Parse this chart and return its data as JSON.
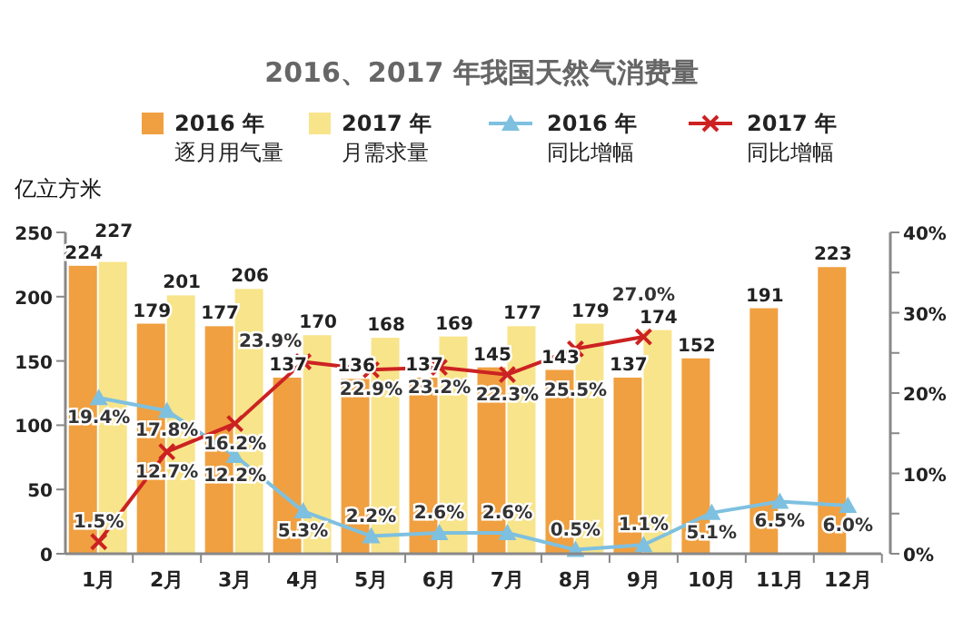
{
  "chart_data": {
    "type": "bar",
    "title": "2016、2017 年我国天然气消费量",
    "ylabel": "亿立方米",
    "categories": [
      "1月",
      "2月",
      "3月",
      "4月",
      "5月",
      "6月",
      "7月",
      "8月",
      "9月",
      "10月",
      "11月",
      "12月"
    ],
    "series": [
      {
        "name": "2016 年逐月用气量",
        "color": "#f0a040",
        "values": [
          224,
          179,
          177,
          137,
          136,
          137,
          145,
          143,
          137,
          152,
          191,
          223
        ]
      },
      {
        "name": "2017 年月需求量",
        "color": "#f8e48a",
        "values": [
          227,
          201,
          206,
          170,
          168,
          169,
          177,
          179,
          174,
          null,
          null,
          null
        ]
      },
      {
        "name": "2016 年同比增幅",
        "type": "line",
        "axis": "y2",
        "marker": "triangle",
        "color": "#7ec0e0",
        "values": [
          19.4,
          17.8,
          12.2,
          5.3,
          2.2,
          2.6,
          2.6,
          0.5,
          1.1,
          5.1,
          6.5,
          6.0
        ],
        "value_labels": [
          "19.4%",
          "17.8%",
          "12.2%",
          "5.3%",
          "2.2%",
          "2.6%",
          "2.6%",
          "0.5%",
          "1.1%",
          "5.1%",
          "6.5%",
          "6.0%"
        ]
      },
      {
        "name": "2017 年同比增幅",
        "type": "line",
        "axis": "y2",
        "marker": "cross",
        "color": "#cc2222",
        "values": [
          1.5,
          12.7,
          16.2,
          23.9,
          22.9,
          23.2,
          22.3,
          25.5,
          27.0,
          null,
          null,
          null
        ],
        "value_labels": [
          "1.5%",
          "12.7%",
          "16.2%",
          "23.9%",
          "22.9%",
          "23.2%",
          "22.3%",
          "25.5%",
          "27.0%",
          null,
          null,
          null
        ]
      }
    ],
    "ylim": [
      0,
      250
    ],
    "yticks": [
      0,
      50,
      100,
      150,
      200,
      250
    ],
    "y2lim": [
      0,
      40
    ],
    "y2ticks": [
      {
        "value": 0,
        "label": "0%"
      },
      {
        "value": 5,
        "label": null
      },
      {
        "value": 10,
        "label": "10%"
      },
      {
        "value": 15,
        "label": null
      },
      {
        "value": 20,
        "label": "20%"
      },
      {
        "value": 25,
        "label": null
      },
      {
        "value": 30,
        "label": "30%"
      },
      {
        "value": 35,
        "label": null
      },
      {
        "value": 40,
        "label": "40%"
      }
    ],
    "data_labels": true,
    "legend": "top",
    "grid": false
  }
}
